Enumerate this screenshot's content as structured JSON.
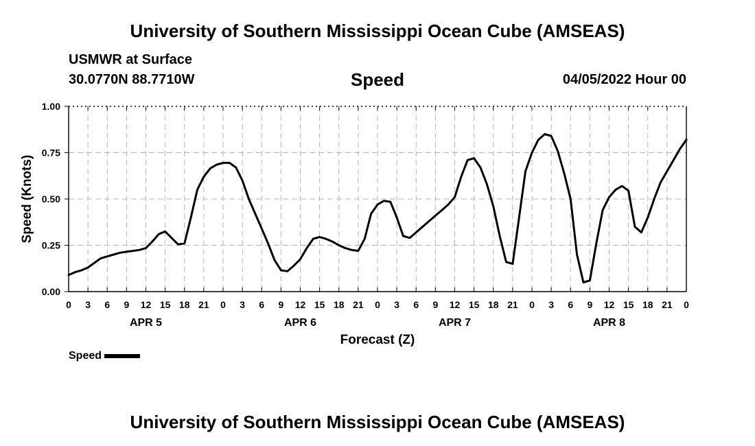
{
  "header": {
    "title": "University of Southern Mississippi Ocean Cube (AMSEAS)",
    "station": "USMWR at Surface",
    "coords": "30.0770N  88.7710W",
    "chart_title": "Speed",
    "date": "04/05/2022 Hour 00"
  },
  "footer": {
    "title": "University of Southern Mississippi Ocean Cube (AMSEAS)"
  },
  "legend": {
    "label": "Speed"
  },
  "chart_data": {
    "type": "line",
    "title": "Speed",
    "xlabel": "Forecast (Z)",
    "ylabel": "Speed (Knots)",
    "xlim": [
      0,
      96
    ],
    "ylim": [
      0,
      1
    ],
    "grid": true,
    "yticks": [
      0,
      0.25,
      0.5,
      0.75,
      1.0
    ],
    "ytick_labels": [
      "0.00",
      "0.25",
      "0.50",
      "0.75",
      "1.00"
    ],
    "xticks": [
      0,
      3,
      6,
      9,
      12,
      15,
      18,
      21,
      24,
      27,
      30,
      33,
      36,
      39,
      42,
      45,
      48,
      51,
      54,
      57,
      60,
      63,
      66,
      69,
      72,
      75,
      78,
      81,
      84,
      87,
      90,
      93,
      96
    ],
    "xtick_labels": [
      "0",
      "3",
      "6",
      "9",
      "12",
      "15",
      "18",
      "21",
      "0",
      "3",
      "6",
      "9",
      "12",
      "15",
      "18",
      "21",
      "0",
      "3",
      "6",
      "9",
      "12",
      "15",
      "18",
      "21",
      "0",
      "3",
      "6",
      "9",
      "12",
      "15",
      "18",
      "21",
      "0"
    ],
    "day_labels": [
      {
        "label": "APR 5",
        "hour": 12
      },
      {
        "label": "APR 6",
        "hour": 36
      },
      {
        "label": "APR 7",
        "hour": 60
      },
      {
        "label": "APR 8",
        "hour": 84
      }
    ],
    "series": [
      {
        "name": "Speed",
        "color": "#000000",
        "x": [
          0,
          1,
          2,
          3,
          4,
          5,
          6,
          7,
          8,
          9,
          10,
          11,
          12,
          13,
          14,
          15,
          16,
          17,
          18,
          19,
          20,
          21,
          22,
          23,
          24,
          25,
          26,
          27,
          28,
          29,
          30,
          31,
          32,
          33,
          34,
          35,
          36,
          37,
          38,
          39,
          40,
          41,
          42,
          43,
          44,
          45,
          46,
          47,
          48,
          49,
          50,
          51,
          52,
          53,
          54,
          55,
          56,
          57,
          58,
          59,
          60,
          61,
          62,
          63,
          64,
          65,
          66,
          67,
          68,
          69,
          70,
          71,
          72,
          73,
          74,
          75,
          76,
          77,
          78,
          79,
          80,
          81,
          82,
          83,
          84,
          85,
          86,
          87,
          88,
          89,
          90,
          91,
          92,
          93,
          94,
          95,
          96
        ],
        "values": [
          0.09,
          0.105,
          0.115,
          0.13,
          0.155,
          0.18,
          0.19,
          0.2,
          0.21,
          0.215,
          0.22,
          0.225,
          0.235,
          0.27,
          0.31,
          0.325,
          0.29,
          0.255,
          0.26,
          0.4,
          0.55,
          0.62,
          0.665,
          0.685,
          0.695,
          0.695,
          0.67,
          0.6,
          0.5,
          0.42,
          0.34,
          0.26,
          0.17,
          0.115,
          0.11,
          0.14,
          0.175,
          0.235,
          0.285,
          0.295,
          0.285,
          0.27,
          0.25,
          0.235,
          0.225,
          0.22,
          0.285,
          0.42,
          0.47,
          0.49,
          0.485,
          0.4,
          0.3,
          0.29,
          0.32,
          0.35,
          0.38,
          0.41,
          0.44,
          0.47,
          0.51,
          0.62,
          0.71,
          0.72,
          0.67,
          0.58,
          0.46,
          0.3,
          0.16,
          0.15,
          0.4,
          0.65,
          0.75,
          0.82,
          0.85,
          0.84,
          0.76,
          0.64,
          0.5,
          0.2,
          0.05,
          0.06,
          0.26,
          0.44,
          0.51,
          0.55,
          0.57,
          0.545,
          0.35,
          0.32,
          0.4,
          0.5,
          0.59,
          0.65,
          0.71,
          0.77,
          0.82
        ]
      }
    ]
  }
}
